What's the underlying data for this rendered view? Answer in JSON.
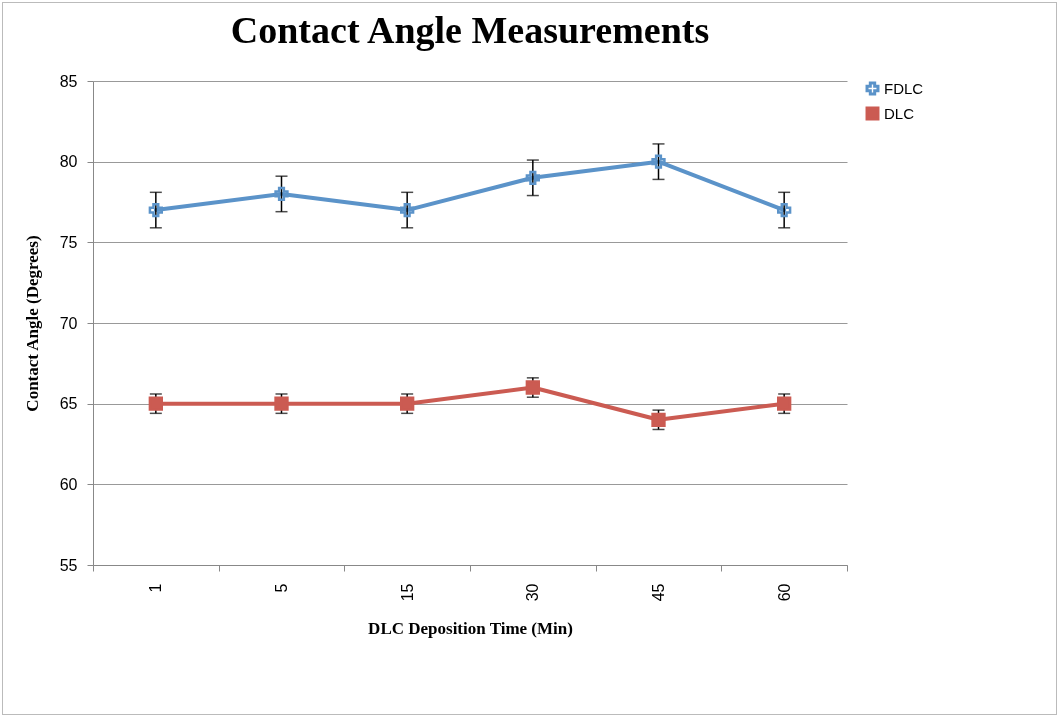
{
  "chart_data": {
    "type": "line",
    "title": "Contact Angle Measurements",
    "xlabel": "DLC Deposition Time (Min)",
    "ylabel": "Contact Angle (Degrees)",
    "categories": [
      "1",
      "5",
      "15",
      "30",
      "45",
      "60"
    ],
    "series": [
      {
        "name": "FDLC",
        "color": "#5b93c9",
        "marker": "cross",
        "values": [
          77,
          78,
          77,
          79,
          80,
          77
        ],
        "errors": [
          1.1,
          1.1,
          1.1,
          1.1,
          1.1,
          1.1
        ]
      },
      {
        "name": "DLC",
        "color": "#cb5b52",
        "marker": "square",
        "values": [
          65,
          65,
          65,
          66,
          64,
          65
        ],
        "errors": [
          0.6,
          0.6,
          0.6,
          0.6,
          0.6,
          0.6
        ]
      }
    ],
    "ylim": [
      55,
      85
    ],
    "yticks": [
      55,
      60,
      65,
      70,
      75,
      80,
      85
    ],
    "grid": "y",
    "legend": "right"
  }
}
